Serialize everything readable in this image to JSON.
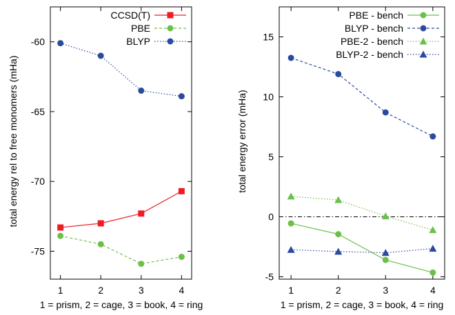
{
  "chart_data": [
    {
      "type": "line",
      "xlabel": "1 = prism, 2 = cage, 3 = book, 4 = ring",
      "ylabel": "total energy rel to free monomers (mHa)",
      "x": [
        1,
        2,
        3,
        4
      ],
      "xlim": [
        0.75,
        4.25
      ],
      "ylim": [
        -77,
        -57.5
      ],
      "xticks": [
        1,
        2,
        3,
        4
      ],
      "yticks": [
        -75,
        -70,
        -65,
        -60
      ],
      "grid": false,
      "legend_position": "top-right",
      "series": [
        {
          "name": "CCSD(T)",
          "values": [
            -73.3,
            -73.0,
            -72.3,
            -70.7
          ],
          "color": "#ee1c25",
          "marker": "square",
          "dash": "solid"
        },
        {
          "name": "PBE",
          "values": [
            -73.9,
            -74.5,
            -75.9,
            -75.4
          ],
          "color": "#6cc04a",
          "marker": "circle",
          "dash": "dashed"
        },
        {
          "name": "BLYP",
          "values": [
            -60.1,
            -61.0,
            -63.5,
            -63.9
          ],
          "color": "#2b4a9e",
          "marker": "circle",
          "dash": "dotted"
        }
      ]
    },
    {
      "type": "line",
      "xlabel": "1 = prism, 2 = cage, 3 = book, 4 = ring",
      "ylabel": "total energy error (mHa)",
      "x": [
        1,
        2,
        3,
        4
      ],
      "xlim": [
        0.75,
        4.25
      ],
      "ylim": [
        -5.2,
        17.5
      ],
      "xticks": [
        1,
        2,
        3,
        4
      ],
      "yticks": [
        -5,
        0,
        5,
        10,
        15
      ],
      "grid": false,
      "zero_line": true,
      "legend_position": "top-right",
      "series": [
        {
          "name": "PBE - bench",
          "values": [
            -0.55,
            -1.45,
            -3.6,
            -4.65
          ],
          "color": "#6cc04a",
          "marker": "circle",
          "dash": "solid"
        },
        {
          "name": "BLYP - bench",
          "values": [
            13.25,
            11.9,
            8.7,
            6.7
          ],
          "color": "#2b4a9e",
          "marker": "circle",
          "dash": "dashed"
        },
        {
          "name": "PBE-2 - bench",
          "values": [
            1.7,
            1.4,
            0.05,
            -1.1
          ],
          "color": "#6cc04a",
          "marker": "triangle",
          "dash": "dotted"
        },
        {
          "name": "BLYP-2 - bench",
          "values": [
            -2.75,
            -2.9,
            -3.0,
            -2.65
          ],
          "color": "#2b4a9e",
          "marker": "triangle",
          "dash": "dotted"
        }
      ]
    }
  ]
}
